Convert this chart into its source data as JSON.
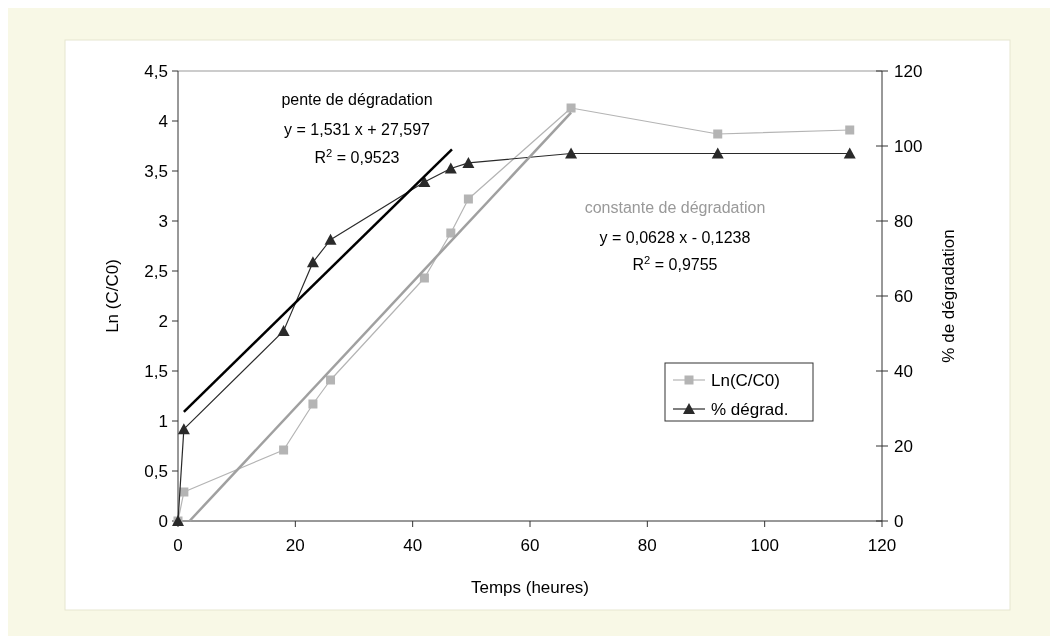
{
  "chart_data": {
    "type": "line",
    "xlabel": "Temps (heures)",
    "ylabel": "Ln (C/C0)",
    "y2label": "% de dégradation",
    "xlim": [
      0,
      120
    ],
    "xticks": [
      0,
      20,
      40,
      60,
      80,
      100,
      120
    ],
    "ylim": [
      0,
      4.5
    ],
    "yticks": [
      0,
      {
        "value": 0.5,
        "label": "0,5"
      },
      1,
      {
        "value": 1.5,
        "label": "1,5"
      },
      2,
      {
        "value": 2.5,
        "label": "2,5"
      },
      3,
      {
        "value": 3.5,
        "label": "3,5"
      },
      4,
      {
        "value": 4.5,
        "label": "4,5"
      }
    ],
    "y2lim": [
      0,
      120
    ],
    "y2ticks": [
      0,
      20,
      40,
      60,
      80,
      100,
      120
    ],
    "series": [
      {
        "name": "Ln(C/C0)",
        "color": "#b4b4b4",
        "marker": "square",
        "x": [
          0,
          1,
          18,
          23,
          26,
          42,
          46.5,
          49.5,
          67,
          92,
          114.5
        ],
        "values": [
          0,
          0.29,
          0.71,
          1.17,
          1.41,
          2.43,
          2.88,
          3.22,
          4.13,
          3.87,
          3.91
        ]
      },
      {
        "name": "% dégrad.",
        "color": "#2a2a2a",
        "marker": "triangle",
        "axis": "y2",
        "x": [
          0,
          1,
          18,
          23,
          26,
          42,
          46.5,
          49.5,
          67,
          92,
          114.5
        ],
        "values": [
          0,
          24.5,
          50.7,
          69,
          75,
          90.4,
          94,
          95.5,
          98,
          98,
          98
        ]
      },
      {
        "color": "#000000",
        "marker": "none",
        "axis": "y2",
        "x": [
          1,
          46.7
        ],
        "values": [
          29.1,
          99.1
        ]
      },
      {
        "color": "#a0a0a0",
        "marker": "none",
        "x": [
          1.97,
          67
        ],
        "values": [
          0,
          4.084
        ]
      }
    ],
    "annotations": [
      "pente de dégradation",
      "y = 1,531 x + 27,597",
      "R$^{2}$ = 0,9523",
      "constante de dégradation",
      "y = 0,0628 x - 0,1238",
      "R$^{2}$ = 0,9755"
    ],
    "grid": false,
    "legend": "right"
  }
}
